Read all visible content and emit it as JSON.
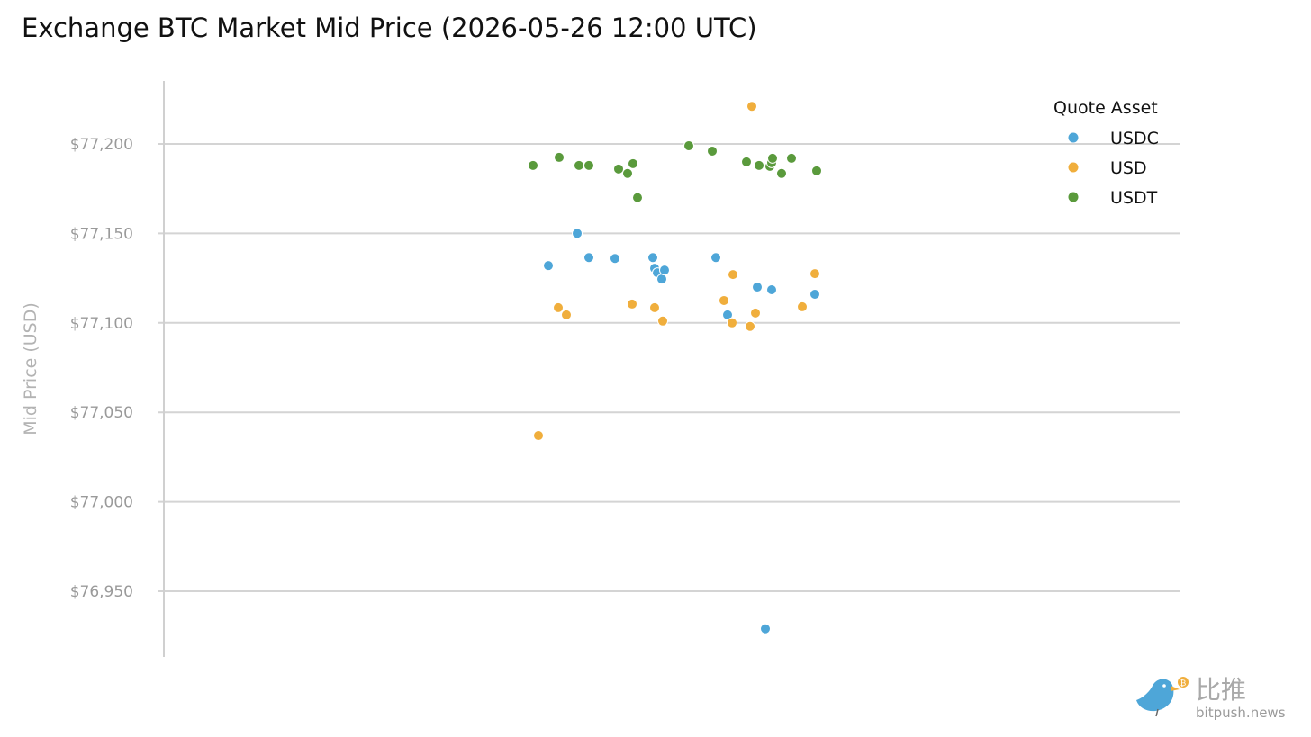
{
  "chart_data": {
    "type": "scatter",
    "title": "Exchange BTC Market Mid Price (2026-05-26 12:00 UTC)",
    "ylabel": "Mid Price (USD)",
    "xlabel": "",
    "ylim": [
      76915,
      77235
    ],
    "yticks": [
      76950,
      77000,
      77050,
      77100,
      77150,
      77200
    ],
    "ytick_labels": [
      "$76,950",
      "$77,000",
      "$77,050",
      "$77,100",
      "$77,150",
      "$77,200"
    ],
    "grid": "horizontal",
    "legend": {
      "title": "Quote Asset",
      "position": "top-right"
    },
    "series": [
      {
        "name": "USDC",
        "color": "#4ea6d8",
        "values": [
          77132,
          77150,
          77136.5,
          77136,
          77136.5,
          77130.5,
          77128,
          77124.5,
          77129.5,
          77136.5,
          77104.5,
          77120,
          77118.5,
          77116,
          76929
        ]
      },
      {
        "name": "USD",
        "color": "#f0ae3c",
        "values": [
          77037,
          77108.5,
          77104.5,
          77110.5,
          77108.5,
          77101,
          77127,
          77112.5,
          77100,
          77105.5,
          77098,
          77221,
          77109,
          77127.5
        ]
      },
      {
        "name": "USDT",
        "color": "#5a9a3c",
        "values": [
          77188,
          77192.5,
          77188,
          77188,
          77186,
          77183.5,
          77189,
          77170,
          77199,
          77196,
          77190,
          77188,
          77187.5,
          77189.5,
          77192,
          77183.5,
          77192,
          77185
        ]
      }
    ]
  },
  "watermark": {
    "name_cn": "比推",
    "url": "bitpush.news",
    "logo": "bird-logo-icon"
  }
}
